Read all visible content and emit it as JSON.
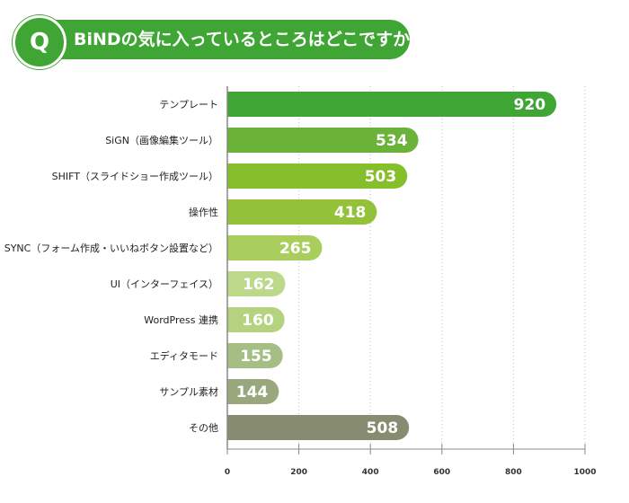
{
  "header": {
    "q_badge": "Q",
    "title": "BiNDの気に入っているところはどこですか？"
  },
  "colors": {
    "accent": "#3fa535",
    "axis": "#888888",
    "grid": "#bbbbbb"
  },
  "chart_data": {
    "type": "bar",
    "orientation": "horizontal",
    "title": "BiNDの気に入っているところはどこですか？",
    "categories": [
      "テンプレート",
      "SiGN（画像編集ツール）",
      "SHIFT（スライドショー作成ツール）",
      "操作性",
      "SYNC（フォーム作成・いいねボタン設置など）",
      "UI（インターフェイス）",
      "WordPress 連携",
      "エディタモード",
      "サンプル素材",
      "その他"
    ],
    "values": [
      920,
      534,
      503,
      418,
      265,
      162,
      160,
      155,
      144,
      508
    ],
    "bar_colors": [
      "#3fa535",
      "#6ab238",
      "#86bf2c",
      "#93c23a",
      "#a9ce5e",
      "#bcd98a",
      "#b5d27e",
      "#a4be84",
      "#98a87c",
      "#878b70"
    ],
    "xlim": [
      0,
      1000
    ],
    "xticks": [
      0,
      200,
      400,
      600,
      800,
      1000
    ],
    "grid": true,
    "legend": "none"
  }
}
